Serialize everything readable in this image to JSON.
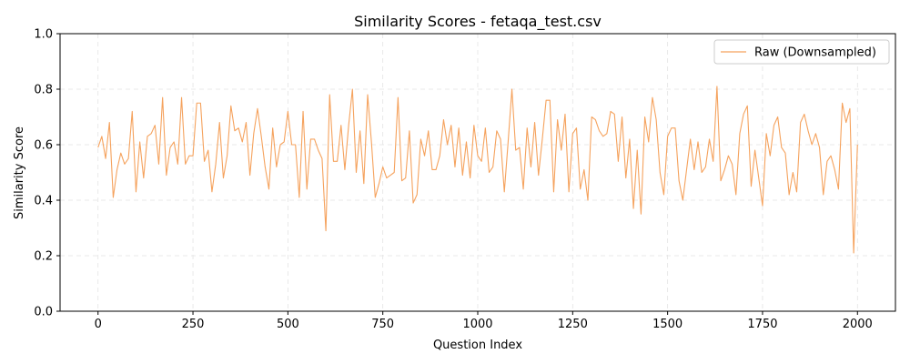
{
  "chart_data": {
    "type": "line",
    "title": "Similarity Scores - fetaqa_test.csv",
    "xlabel": "Question Index",
    "ylabel": "Similarity Score",
    "xlim": [
      -100,
      2100
    ],
    "ylim": [
      0,
      1.0
    ],
    "xticks": [
      0,
      250,
      500,
      750,
      1000,
      1250,
      1500,
      1750,
      2000
    ],
    "yticks": [
      0.0,
      0.2,
      0.4,
      0.6,
      0.8,
      1.0
    ],
    "grid": true,
    "legend_position": "top-right",
    "series": [
      {
        "name": "Raw (Downsampled)",
        "color": "#f5a25d",
        "x": [
          0,
          10,
          20,
          30,
          40,
          50,
          60,
          70,
          80,
          90,
          100,
          110,
          120,
          130,
          140,
          150,
          160,
          170,
          180,
          190,
          200,
          210,
          220,
          230,
          240,
          250,
          260,
          270,
          280,
          290,
          300,
          310,
          320,
          330,
          340,
          350,
          360,
          370,
          380,
          390,
          400,
          410,
          420,
          430,
          440,
          450,
          460,
          470,
          480,
          490,
          500,
          510,
          520,
          530,
          540,
          550,
          560,
          570,
          580,
          590,
          600,
          610,
          620,
          630,
          640,
          650,
          660,
          670,
          680,
          690,
          700,
          710,
          720,
          730,
          740,
          750,
          760,
          770,
          780,
          790,
          800,
          810,
          820,
          830,
          840,
          850,
          860,
          870,
          880,
          890,
          900,
          910,
          920,
          930,
          940,
          950,
          960,
          970,
          980,
          990,
          1000,
          1010,
          1020,
          1030,
          1040,
          1050,
          1060,
          1070,
          1080,
          1090,
          1100,
          1110,
          1120,
          1130,
          1140,
          1150,
          1160,
          1170,
          1180,
          1190,
          1200,
          1210,
          1220,
          1230,
          1240,
          1250,
          1260,
          1270,
          1280,
          1290,
          1300,
          1310,
          1320,
          1330,
          1340,
          1350,
          1360,
          1370,
          1380,
          1390,
          1400,
          1410,
          1420,
          1430,
          1440,
          1450,
          1460,
          1470,
          1480,
          1490,
          1500,
          1510,
          1520,
          1530,
          1540,
          1550,
          1560,
          1570,
          1580,
          1590,
          1600,
          1610,
          1620,
          1630,
          1640,
          1650,
          1660,
          1670,
          1680,
          1690,
          1700,
          1710,
          1720,
          1730,
          1740,
          1750,
          1760,
          1770,
          1780,
          1790,
          1800,
          1810,
          1820,
          1830,
          1840,
          1850,
          1860,
          1870,
          1880,
          1890,
          1900,
          1910,
          1920,
          1930,
          1940,
          1950,
          1960,
          1970,
          1980,
          1990,
          2000
        ],
        "y": [
          0.59,
          0.63,
          0.55,
          0.68,
          0.41,
          0.51,
          0.57,
          0.53,
          0.55,
          0.72,
          0.43,
          0.61,
          0.48,
          0.63,
          0.64,
          0.67,
          0.53,
          0.77,
          0.49,
          0.59,
          0.61,
          0.53,
          0.77,
          0.53,
          0.56,
          0.56,
          0.75,
          0.75,
          0.54,
          0.58,
          0.43,
          0.53,
          0.68,
          0.48,
          0.56,
          0.74,
          0.65,
          0.66,
          0.61,
          0.68,
          0.49,
          0.64,
          0.73,
          0.63,
          0.52,
          0.44,
          0.66,
          0.52,
          0.6,
          0.61,
          0.72,
          0.6,
          0.6,
          0.41,
          0.72,
          0.44,
          0.62,
          0.62,
          0.58,
          0.55,
          0.29,
          0.78,
          0.54,
          0.54,
          0.67,
          0.51,
          0.67,
          0.8,
          0.5,
          0.65,
          0.46,
          0.78,
          0.61,
          0.41,
          0.46,
          0.52,
          0.48,
          0.49,
          0.5,
          0.77,
          0.47,
          0.48,
          0.65,
          0.39,
          0.42,
          0.62,
          0.56,
          0.65,
          0.51,
          0.51,
          0.56,
          0.69,
          0.6,
          0.67,
          0.52,
          0.66,
          0.49,
          0.61,
          0.48,
          0.67,
          0.56,
          0.54,
          0.66,
          0.5,
          0.52,
          0.65,
          0.62,
          0.43,
          0.61,
          0.8,
          0.58,
          0.59,
          0.44,
          0.66,
          0.52,
          0.68,
          0.49,
          0.62,
          0.76,
          0.76,
          0.43,
          0.69,
          0.58,
          0.71,
          0.43,
          0.64,
          0.66,
          0.44,
          0.51,
          0.4,
          0.7,
          0.69,
          0.65,
          0.63,
          0.64,
          0.72,
          0.71,
          0.54,
          0.7,
          0.48,
          0.62,
          0.37,
          0.58,
          0.35,
          0.7,
          0.61,
          0.77,
          0.69,
          0.5,
          0.42,
          0.63,
          0.66,
          0.66,
          0.47,
          0.4,
          0.51,
          0.62,
          0.51,
          0.61,
          0.5,
          0.52,
          0.62,
          0.54,
          0.81,
          0.47,
          0.51,
          0.56,
          0.53,
          0.42,
          0.64,
          0.71,
          0.74,
          0.45,
          0.58,
          0.48,
          0.38,
          0.64,
          0.56,
          0.67,
          0.7,
          0.59,
          0.57,
          0.42,
          0.5,
          0.43,
          0.68,
          0.71,
          0.65,
          0.6,
          0.64,
          0.59,
          0.42,
          0.54,
          0.56,
          0.51,
          0.44,
          0.75,
          0.68,
          0.73,
          0.21,
          0.6
        ]
      }
    ]
  }
}
